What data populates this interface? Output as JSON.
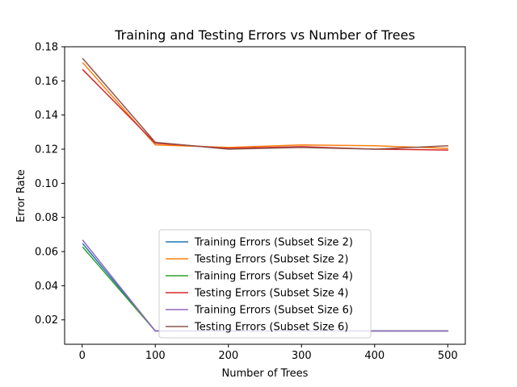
{
  "chart_data": {
    "type": "line",
    "title": "Training and Testing Errors vs Number of Trees",
    "xlabel": "Number of Trees",
    "ylabel": "Error Rate",
    "x": [
      1,
      100,
      200,
      300,
      400,
      500
    ],
    "xlim": [
      -24,
      524
    ],
    "ylim": [
      0.0057,
      0.18
    ],
    "xticks": [
      0,
      100,
      200,
      300,
      400,
      500
    ],
    "yticks": [
      0.02,
      0.04,
      0.06,
      0.08,
      0.1,
      0.12,
      0.14,
      0.16,
      0.18
    ],
    "ytick_labels": [
      "0.02",
      "0.04",
      "0.06",
      "0.08",
      "0.10",
      "0.12",
      "0.14",
      "0.16",
      "0.18"
    ],
    "grid": false,
    "legend_position": "lower center",
    "series": [
      {
        "name": "Training Errors (Subset Size 2)",
        "color": "#1f77b4",
        "values": [
          0.0645,
          0.0135,
          0.0135,
          0.0135,
          0.0135,
          0.0135
        ]
      },
      {
        "name": "Testing Errors (Subset Size 2)",
        "color": "#ff7f0e",
        "values": [
          0.1705,
          0.1225,
          0.121,
          0.1225,
          0.122,
          0.1205
        ]
      },
      {
        "name": "Training Errors (Subset Size 4)",
        "color": "#2ca02c",
        "values": [
          0.0625,
          0.0135,
          0.0135,
          0.0135,
          0.0135,
          0.0135
        ]
      },
      {
        "name": "Testing Errors (Subset Size 4)",
        "color": "#d62728",
        "values": [
          0.1665,
          0.1235,
          0.1205,
          0.1215,
          0.12,
          0.1195
        ]
      },
      {
        "name": "Training Errors (Subset Size 6)",
        "color": "#9467bd",
        "values": [
          0.0665,
          0.0135,
          0.0135,
          0.0135,
          0.0135,
          0.0135
        ]
      },
      {
        "name": "Testing Errors (Subset Size 6)",
        "color": "#8c564b",
        "values": [
          0.173,
          0.124,
          0.12,
          0.121,
          0.12,
          0.122
        ]
      }
    ]
  }
}
